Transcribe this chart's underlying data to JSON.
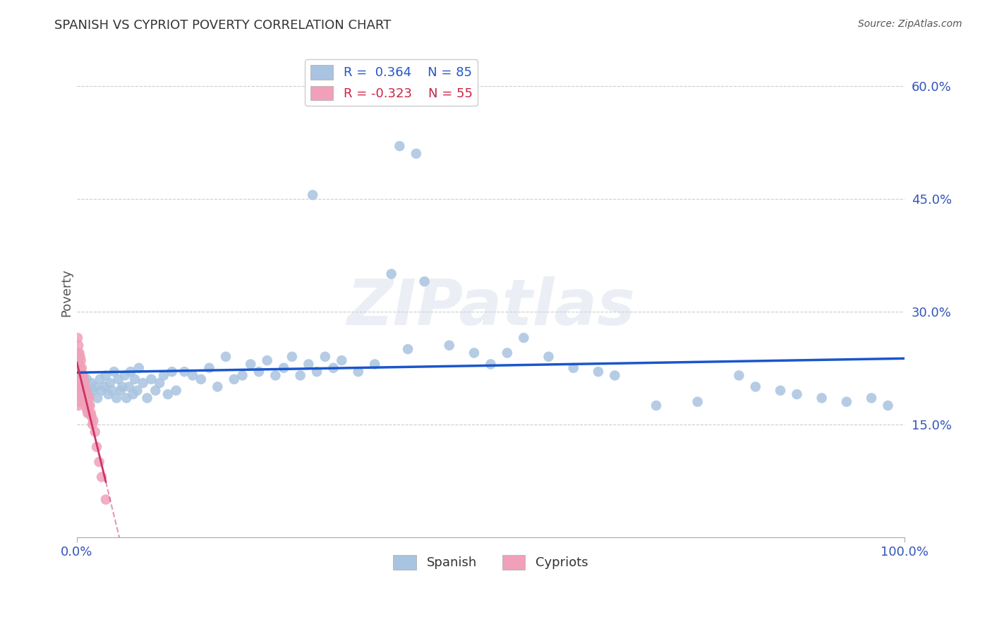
{
  "title": "SPANISH VS CYPRIOT POVERTY CORRELATION CHART",
  "source_text": "Source: ZipAtlas.com",
  "ylabel": "Poverty",
  "watermark": "ZIPatlas",
  "xlim": [
    0,
    1.0
  ],
  "ylim": [
    0,
    0.65
  ],
  "ytick_positions": [
    0.15,
    0.3,
    0.45,
    0.6
  ],
  "ytick_labels": [
    "15.0%",
    "30.0%",
    "45.0%",
    "60.0%"
  ],
  "spanish_color": "#a8c4e0",
  "cypriot_color": "#f0a0b8",
  "spanish_R": 0.364,
  "spanish_N": 85,
  "cypriot_R": -0.323,
  "cypriot_N": 55,
  "trend_blue": "#1a56cc",
  "trend_pink": "#cc3366",
  "legend_R_color_blue": "#2255cc",
  "legend_R_color_pink": "#cc2244",
  "background_color": "#ffffff",
  "grid_color": "#cccccc",
  "sp_x": [
    0.005,
    0.008,
    0.01,
    0.012,
    0.015,
    0.018,
    0.02,
    0.022,
    0.025,
    0.028,
    0.03,
    0.033,
    0.035,
    0.038,
    0.04,
    0.043,
    0.045,
    0.048,
    0.05,
    0.053,
    0.055,
    0.058,
    0.06,
    0.063,
    0.065,
    0.068,
    0.07,
    0.073,
    0.075,
    0.08,
    0.085,
    0.09,
    0.095,
    0.1,
    0.105,
    0.11,
    0.115,
    0.12,
    0.13,
    0.14,
    0.15,
    0.16,
    0.17,
    0.18,
    0.19,
    0.2,
    0.21,
    0.22,
    0.23,
    0.24,
    0.25,
    0.26,
    0.27,
    0.28,
    0.29,
    0.3,
    0.31,
    0.32,
    0.34,
    0.36,
    0.38,
    0.4,
    0.42,
    0.45,
    0.48,
    0.5,
    0.52,
    0.54,
    0.57,
    0.6,
    0.63,
    0.65,
    0.7,
    0.75,
    0.8,
    0.82,
    0.85,
    0.87,
    0.9,
    0.93,
    0.96,
    0.98,
    0.39,
    0.41,
    0.285
  ],
  "sp_y": [
    0.2,
    0.215,
    0.195,
    0.21,
    0.19,
    0.205,
    0.195,
    0.2,
    0.185,
    0.21,
    0.195,
    0.2,
    0.215,
    0.19,
    0.205,
    0.195,
    0.22,
    0.185,
    0.21,
    0.195,
    0.2,
    0.215,
    0.185,
    0.2,
    0.22,
    0.19,
    0.21,
    0.195,
    0.225,
    0.205,
    0.185,
    0.21,
    0.195,
    0.205,
    0.215,
    0.19,
    0.22,
    0.195,
    0.22,
    0.215,
    0.21,
    0.225,
    0.2,
    0.24,
    0.21,
    0.215,
    0.23,
    0.22,
    0.235,
    0.215,
    0.225,
    0.24,
    0.215,
    0.23,
    0.22,
    0.24,
    0.225,
    0.235,
    0.22,
    0.23,
    0.35,
    0.25,
    0.34,
    0.255,
    0.245,
    0.23,
    0.245,
    0.265,
    0.24,
    0.225,
    0.22,
    0.215,
    0.175,
    0.18,
    0.215,
    0.2,
    0.195,
    0.19,
    0.185,
    0.18,
    0.185,
    0.175,
    0.52,
    0.51,
    0.455
  ],
  "cy_x": [
    0.001,
    0.001,
    0.001,
    0.001,
    0.001,
    0.002,
    0.002,
    0.002,
    0.002,
    0.002,
    0.002,
    0.003,
    0.003,
    0.003,
    0.003,
    0.003,
    0.004,
    0.004,
    0.004,
    0.004,
    0.005,
    0.005,
    0.005,
    0.005,
    0.006,
    0.006,
    0.006,
    0.007,
    0.007,
    0.007,
    0.008,
    0.008,
    0.009,
    0.009,
    0.01,
    0.01,
    0.011,
    0.011,
    0.012,
    0.012,
    0.013,
    0.013,
    0.014,
    0.015,
    0.015,
    0.016,
    0.017,
    0.018,
    0.019,
    0.02,
    0.022,
    0.024,
    0.027,
    0.03,
    0.035
  ],
  "cy_y": [
    0.265,
    0.245,
    0.225,
    0.205,
    0.185,
    0.255,
    0.24,
    0.225,
    0.21,
    0.195,
    0.175,
    0.245,
    0.23,
    0.215,
    0.2,
    0.18,
    0.24,
    0.225,
    0.21,
    0.19,
    0.235,
    0.22,
    0.205,
    0.185,
    0.225,
    0.21,
    0.19,
    0.215,
    0.2,
    0.18,
    0.21,
    0.19,
    0.205,
    0.185,
    0.2,
    0.18,
    0.195,
    0.175,
    0.19,
    0.17,
    0.185,
    0.165,
    0.175,
    0.185,
    0.165,
    0.175,
    0.165,
    0.16,
    0.15,
    0.155,
    0.14,
    0.12,
    0.1,
    0.08,
    0.05
  ]
}
